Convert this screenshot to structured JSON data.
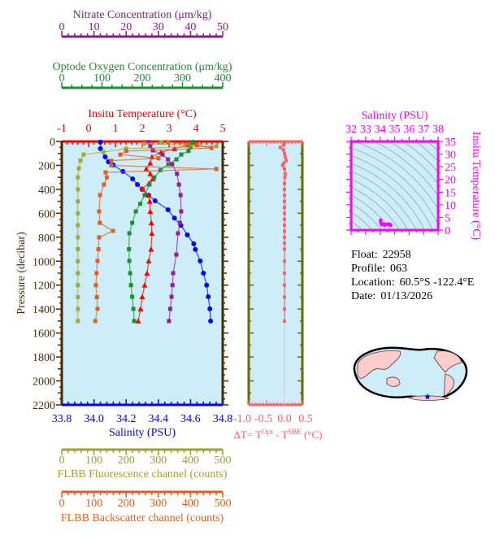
{
  "chart_data": [
    {
      "type": "line",
      "name": "profile",
      "ylabel": "Pressure (decibar)",
      "ylim": [
        0,
        2200
      ],
      "y_inverted": true,
      "yticks": [
        0,
        200,
        400,
        600,
        800,
        1000,
        1200,
        1400,
        1600,
        1800,
        2000,
        2200
      ],
      "background": "#cdeef8",
      "axes": {
        "nitrate": {
          "label": "Nitrate Concentration (μm/kg)",
          "range": [
            0,
            50
          ],
          "ticks": [
            0,
            10,
            20,
            30,
            40,
            50
          ],
          "color": "#8b1a8b"
        },
        "oxygen": {
          "label": "Optode Oxygen Concentration (μm/kg)",
          "range": [
            0,
            400
          ],
          "ticks": [
            0,
            100,
            200,
            300,
            400
          ],
          "color": "#1a9030"
        },
        "temperature": {
          "label": "Insitu Temperature (°C)",
          "range": [
            -1,
            5
          ],
          "ticks": [
            -1,
            0,
            1,
            2,
            3,
            4,
            5
          ],
          "color": "#ff0000"
        },
        "salinity": {
          "label": "Salinity (PSU)",
          "range": [
            33.8,
            34.8
          ],
          "ticks": [
            "33.8",
            "34.0",
            "34.2",
            "34.4",
            "34.6",
            "34.8"
          ],
          "color": "#0000ff"
        },
        "fluorescence": {
          "label": "FLBB Fluorescence channel (counts)",
          "range": [
            0,
            500
          ],
          "ticks": [
            0,
            100,
            200,
            300,
            400,
            500
          ],
          "color": "#a0a030"
        },
        "backscatter": {
          "label": "FLBB Backscatter channel (counts)",
          "range": [
            0,
            500
          ],
          "ticks": [
            0,
            100,
            200,
            300,
            400,
            500
          ],
          "color": "#e06020"
        }
      },
      "series": [
        {
          "axis": "salinity",
          "color": "#0000ff",
          "marker": "circle",
          "points": [
            [
              5,
              34.04
            ],
            [
              60,
              34.04
            ],
            [
              129,
              34.07
            ],
            [
              170,
              34.09
            ],
            [
              197,
              34.12
            ],
            [
              250,
              34.18
            ],
            [
              312,
              34.24
            ],
            [
              360,
              34.27
            ],
            [
              400,
              34.3
            ],
            [
              450,
              34.34
            ],
            [
              496,
              34.38
            ],
            [
              570,
              34.46
            ],
            [
              640,
              34.5
            ],
            [
              700,
              34.54
            ],
            [
              780,
              34.58
            ],
            [
              855,
              34.62
            ],
            [
              902,
              34.63
            ],
            [
              998,
              34.66
            ],
            [
              1100,
              34.68
            ],
            [
              1200,
              34.7
            ],
            [
              1297,
              34.71
            ],
            [
              1398,
              34.72
            ],
            [
              1500,
              34.725
            ]
          ]
        },
        {
          "axis": "temperature",
          "color": "#ff0000",
          "marker": "triangle",
          "points": [
            [
              5,
              3.9
            ],
            [
              30,
              3.7
            ],
            [
              60,
              3.2
            ],
            [
              90,
              2.7
            ],
            [
              129,
              2.36
            ],
            [
              180,
              2.3
            ],
            [
              230,
              2.15
            ],
            [
              270,
              2.3
            ],
            [
              312,
              2.39
            ],
            [
              350,
              2.25
            ],
            [
              394,
              2.0
            ],
            [
              448,
              2.24
            ],
            [
              500,
              2.28
            ],
            [
              584,
              2.3
            ],
            [
              680,
              2.34
            ],
            [
              767,
              2.36
            ],
            [
              900,
              2.33
            ],
            [
              998,
              2.24
            ],
            [
              1100,
              2.18
            ],
            [
              1200,
              2.09
            ],
            [
              1297,
              2.0
            ],
            [
              1398,
              1.94
            ],
            [
              1500,
              1.85
            ]
          ]
        },
        {
          "axis": "oxygen",
          "color": "#1a9030",
          "marker": "square",
          "points": [
            [
              5,
              325
            ],
            [
              50,
              320
            ],
            [
              80,
              315
            ],
            [
              109,
              297
            ],
            [
              150,
              285
            ],
            [
              190,
              265
            ],
            [
              240,
              245
            ],
            [
              300,
              230
            ],
            [
              360,
              218
            ],
            [
              448,
              206
            ],
            [
              520,
              195
            ],
            [
              584,
              184
            ],
            [
              680,
              175
            ],
            [
              767,
              168
            ],
            [
              900,
              167
            ],
            [
              998,
              168
            ],
            [
              1100,
              170
            ],
            [
              1200,
              172
            ],
            [
              1297,
              175
            ],
            [
              1398,
              178
            ],
            [
              1500,
              180
            ]
          ]
        },
        {
          "axis": "nitrate",
          "color": "#9a1a9a",
          "marker": "square",
          "points": [
            [
              5,
              27
            ],
            [
              40,
              27.5
            ],
            [
              75,
              28.3
            ],
            [
              109,
              31.3
            ],
            [
              150,
              33.0
            ],
            [
              190,
              34.3
            ],
            [
              270,
              35.8
            ],
            [
              360,
              36.4
            ],
            [
              448,
              36.9
            ],
            [
              584,
              37.1
            ],
            [
              680,
              36.7
            ],
            [
              767,
              36.1
            ],
            [
              945,
              35.6
            ],
            [
              1100,
              34.6
            ],
            [
              1200,
              34.4
            ],
            [
              1297,
              34.1
            ],
            [
              1398,
              33.7
            ],
            [
              1500,
              33.3
            ]
          ]
        },
        {
          "axis": "fluorescence",
          "color": "#a8a830",
          "marker": "square",
          "points": [
            [
              5,
              310
            ],
            [
              20,
              255
            ],
            [
              40,
              480
            ],
            [
              60,
              200
            ],
            [
              88,
              129
            ],
            [
              109,
              68
            ],
            [
              160,
              58
            ],
            [
              224,
              53
            ],
            [
              300,
              50
            ],
            [
              400,
              50
            ],
            [
              500,
              50
            ],
            [
              600,
              50
            ],
            [
              700,
              50
            ],
            [
              800,
              50
            ],
            [
              900,
              50
            ],
            [
              1000,
              50
            ],
            [
              1100,
              50
            ],
            [
              1200,
              50
            ],
            [
              1300,
              50
            ],
            [
              1400,
              50
            ],
            [
              1500,
              50
            ]
          ]
        },
        {
          "axis": "backscatter",
          "color": "#e06020",
          "marker": "square",
          "points": [
            [
              5,
              330
            ],
            [
              30,
              420
            ],
            [
              55,
              465
            ],
            [
              80,
              200
            ],
            [
              110,
              182
            ],
            [
              140,
              300
            ],
            [
              160,
              154
            ],
            [
              200,
              154
            ],
            [
              230,
              480
            ],
            [
              258,
              136
            ],
            [
              300,
              140
            ],
            [
              360,
              131
            ],
            [
              448,
              119
            ],
            [
              584,
              116
            ],
            [
              680,
              118
            ],
            [
              747,
              159
            ],
            [
              801,
              116
            ],
            [
              900,
              114
            ],
            [
              998,
              111
            ],
            [
              1100,
              108
            ],
            [
              1200,
              106
            ],
            [
              1300,
              109
            ],
            [
              1398,
              111
            ],
            [
              1500,
              104
            ]
          ]
        }
      ]
    },
    {
      "type": "line",
      "name": "delta-t",
      "xlabel": "ΔT= T",
      "xlabel_sup1": "Opt",
      "xlabel_mid": " - T",
      "xlabel_sup2": "SBE",
      "xlabel_end": " (°C)",
      "xlim": [
        -1.0,
        0.5
      ],
      "xticks": [
        "-1.0",
        "-0.5",
        "0.0",
        "0.5"
      ],
      "ylim": [
        0,
        2200
      ],
      "color": "#ff6060",
      "points": [
        [
          5,
          0.0
        ],
        [
          30,
          -0.02
        ],
        [
          50,
          -0.12
        ],
        [
          70,
          -0.03
        ],
        [
          100,
          0.0
        ],
        [
          130,
          0.02
        ],
        [
          160,
          0.05
        ],
        [
          180,
          -0.02
        ],
        [
          200,
          -0.05
        ],
        [
          230,
          0.0
        ],
        [
          270,
          0.02
        ],
        [
          300,
          0.01
        ],
        [
          350,
          0.0
        ],
        [
          400,
          0.0
        ],
        [
          450,
          0.0
        ],
        [
          500,
          0.0
        ],
        [
          550,
          0.0
        ],
        [
          600,
          0.0
        ],
        [
          650,
          0.0
        ],
        [
          700,
          0.0
        ],
        [
          750,
          0.0
        ],
        [
          800,
          0.0
        ],
        [
          850,
          0.0
        ],
        [
          900,
          0.0
        ],
        [
          1000,
          0.0
        ],
        [
          1100,
          0.0
        ],
        [
          1200,
          0.0
        ],
        [
          1300,
          0.0
        ],
        [
          1400,
          0.0
        ],
        [
          1500,
          0.0
        ]
      ]
    },
    {
      "type": "scatter",
      "name": "ts-diagram",
      "xlabel": "Salinity (PSU)",
      "ylabel": "Insitu Temperature (°C)",
      "xlim": [
        32,
        38
      ],
      "ylim": [
        0,
        35
      ],
      "xticks": [
        32,
        33,
        34,
        35,
        36,
        37,
        38
      ],
      "yticks": [
        0,
        5,
        10,
        15,
        20,
        25,
        30,
        35
      ],
      "color": "#ff00ff",
      "points": [
        [
          34.04,
          3.9
        ],
        [
          34.04,
          3.2
        ],
        [
          34.07,
          2.4
        ],
        [
          34.12,
          2.15
        ],
        [
          34.24,
          2.39
        ],
        [
          34.3,
          2.0
        ],
        [
          34.38,
          2.2
        ],
        [
          34.46,
          2.3
        ],
        [
          34.54,
          2.35
        ],
        [
          34.62,
          2.35
        ],
        [
          34.66,
          2.24
        ],
        [
          34.68,
          2.18
        ],
        [
          34.7,
          2.09
        ],
        [
          34.72,
          1.94
        ],
        [
          34.725,
          1.85
        ]
      ]
    }
  ],
  "info": {
    "float_label": "Float:",
    "float": "22958",
    "profile_label": "Profile:",
    "profile": "063",
    "location_label": "Location:",
    "location": "60.5°S  -122.4°E",
    "date_label": "Date:",
    "date": "01/13/2026"
  },
  "map": {
    "marker_lat": -60.5,
    "marker_lon": -122.4,
    "land_color": "#ffcccc",
    "ocean_color": "#cdeef8",
    "marker_color": "#0000ff",
    "marker_icon": "star-icon"
  }
}
